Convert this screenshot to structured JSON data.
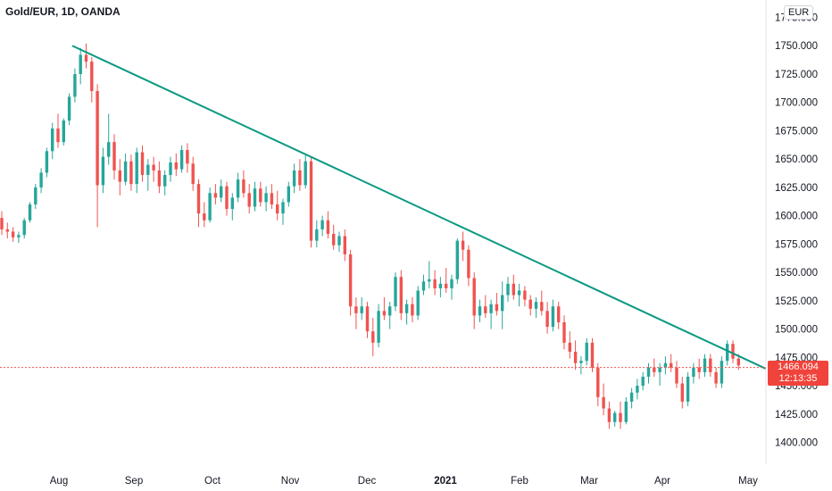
{
  "header": {
    "symbol": "Gold/EUR, 1D, OANDA",
    "currency": "EUR"
  },
  "last_price": {
    "value": "1466.094",
    "countdown": "12:13:35"
  },
  "colors": {
    "up": "#26a69a",
    "down": "#ef5350",
    "trend": "#089981",
    "last_line": "#ef5350"
  },
  "chart_data": {
    "type": "candlestick",
    "title": "Gold/EUR, 1D, OANDA",
    "xlabel": "",
    "ylabel": "",
    "ylim": [
      1380,
      1780
    ],
    "y_ticks": [
      "1400.000",
      "1425.000",
      "1450.000",
      "1475.000",
      "1500.000",
      "1525.000",
      "1550.000",
      "1575.000",
      "1600.000",
      "1625.000",
      "1650.000",
      "1675.000",
      "1700.000",
      "1725.000",
      "1750.000",
      "1775.000"
    ],
    "x_ticks": [
      "Aug",
      "Sep",
      "Oct",
      "Nov",
      "Dec",
      "2021",
      "Feb",
      "Mar",
      "Apr",
      "May"
    ],
    "grid": false,
    "trendline": {
      "from": {
        "date": "Aug 7",
        "price": 1750
      },
      "to": {
        "date": "Apr 30",
        "price": 1465
      }
    },
    "last_value": 1466.094,
    "ohlc_approx": [
      [
        1598,
        1604,
        1583,
        1588
      ],
      [
        1588,
        1594,
        1580,
        1586
      ],
      [
        1586,
        1590,
        1577,
        1581
      ],
      [
        1581,
        1586,
        1576,
        1583
      ],
      [
        1583,
        1598,
        1580,
        1596
      ],
      [
        1596,
        1612,
        1594,
        1610
      ],
      [
        1610,
        1628,
        1606,
        1625
      ],
      [
        1625,
        1642,
        1620,
        1638
      ],
      [
        1638,
        1660,
        1634,
        1657
      ],
      [
        1657,
        1682,
        1650,
        1677
      ],
      [
        1677,
        1690,
        1660,
        1665
      ],
      [
        1665,
        1686,
        1662,
        1684
      ],
      [
        1684,
        1708,
        1680,
        1705
      ],
      [
        1705,
        1730,
        1700,
        1725
      ],
      [
        1725,
        1748,
        1716,
        1742
      ],
      [
        1742,
        1752,
        1730,
        1736
      ],
      [
        1736,
        1740,
        1700,
        1710
      ],
      [
        1710,
        1716,
        1590,
        1627
      ],
      [
        1627,
        1660,
        1620,
        1652
      ],
      [
        1652,
        1690,
        1645,
        1665
      ],
      [
        1665,
        1672,
        1632,
        1640
      ],
      [
        1640,
        1650,
        1618,
        1630
      ],
      [
        1630,
        1655,
        1627,
        1648
      ],
      [
        1648,
        1654,
        1622,
        1628
      ],
      [
        1628,
        1660,
        1620,
        1656
      ],
      [
        1656,
        1662,
        1630,
        1636
      ],
      [
        1636,
        1650,
        1622,
        1645
      ],
      [
        1645,
        1652,
        1630,
        1640
      ],
      [
        1640,
        1648,
        1620,
        1626
      ],
      [
        1626,
        1640,
        1618,
        1636
      ],
      [
        1636,
        1652,
        1630,
        1647
      ],
      [
        1647,
        1655,
        1635,
        1641
      ],
      [
        1641,
        1662,
        1638,
        1658
      ],
      [
        1658,
        1664,
        1638,
        1646
      ],
      [
        1646,
        1652,
        1622,
        1628
      ],
      [
        1628,
        1632,
        1590,
        1602
      ],
      [
        1602,
        1612,
        1590,
        1596
      ],
      [
        1596,
        1625,
        1594,
        1620
      ],
      [
        1620,
        1628,
        1610,
        1616
      ],
      [
        1616,
        1632,
        1612,
        1626
      ],
      [
        1626,
        1630,
        1600,
        1606
      ],
      [
        1606,
        1620,
        1596,
        1616
      ],
      [
        1616,
        1638,
        1612,
        1632
      ],
      [
        1632,
        1640,
        1616,
        1620
      ],
      [
        1620,
        1628,
        1602,
        1608
      ],
      [
        1608,
        1630,
        1604,
        1624
      ],
      [
        1624,
        1630,
        1608,
        1612
      ],
      [
        1612,
        1626,
        1604,
        1620
      ],
      [
        1620,
        1628,
        1606,
        1610
      ],
      [
        1610,
        1622,
        1596,
        1602
      ],
      [
        1602,
        1615,
        1592,
        1612
      ],
      [
        1612,
        1630,
        1608,
        1626
      ],
      [
        1626,
        1646,
        1620,
        1640
      ],
      [
        1640,
        1650,
        1622,
        1627
      ],
      [
        1627,
        1654,
        1624,
        1648
      ],
      [
        1648,
        1652,
        1572,
        1578
      ],
      [
        1578,
        1596,
        1572,
        1588
      ],
      [
        1588,
        1600,
        1582,
        1596
      ],
      [
        1596,
        1604,
        1580,
        1584
      ],
      [
        1584,
        1592,
        1570,
        1574
      ],
      [
        1574,
        1586,
        1568,
        1582
      ],
      [
        1582,
        1588,
        1560,
        1566
      ],
      [
        1566,
        1570,
        1512,
        1520
      ],
      [
        1520,
        1528,
        1500,
        1514
      ],
      [
        1514,
        1528,
        1508,
        1520
      ],
      [
        1520,
        1524,
        1492,
        1498
      ],
      [
        1498,
        1510,
        1476,
        1488
      ],
      [
        1488,
        1522,
        1484,
        1516
      ],
      [
        1516,
        1528,
        1508,
        1512
      ],
      [
        1512,
        1524,
        1500,
        1520
      ],
      [
        1520,
        1550,
        1516,
        1546
      ],
      [
        1546,
        1552,
        1508,
        1514
      ],
      [
        1514,
        1526,
        1504,
        1522
      ],
      [
        1522,
        1528,
        1506,
        1512
      ],
      [
        1512,
        1538,
        1508,
        1534
      ],
      [
        1534,
        1548,
        1530,
        1542
      ],
      [
        1542,
        1560,
        1536,
        1544
      ],
      [
        1544,
        1552,
        1530,
        1536
      ],
      [
        1536,
        1546,
        1528,
        1540
      ],
      [
        1540,
        1554,
        1532,
        1536
      ],
      [
        1536,
        1548,
        1526,
        1544
      ],
      [
        1544,
        1580,
        1540,
        1578
      ],
      [
        1578,
        1586,
        1560,
        1570
      ],
      [
        1570,
        1574,
        1538,
        1545
      ],
      [
        1545,
        1550,
        1500,
        1512
      ],
      [
        1512,
        1526,
        1506,
        1520
      ],
      [
        1520,
        1530,
        1510,
        1514
      ],
      [
        1514,
        1526,
        1500,
        1522
      ],
      [
        1522,
        1532,
        1512,
        1516
      ],
      [
        1516,
        1542,
        1500,
        1530
      ],
      [
        1530,
        1546,
        1524,
        1540
      ],
      [
        1540,
        1548,
        1526,
        1530
      ],
      [
        1530,
        1540,
        1520,
        1534
      ],
      [
        1534,
        1538,
        1520,
        1526
      ],
      [
        1526,
        1530,
        1512,
        1518
      ],
      [
        1518,
        1528,
        1510,
        1524
      ],
      [
        1524,
        1534,
        1512,
        1516
      ],
      [
        1516,
        1524,
        1496,
        1502
      ],
      [
        1502,
        1526,
        1498,
        1520
      ],
      [
        1520,
        1524,
        1500,
        1506
      ],
      [
        1506,
        1512,
        1482,
        1488
      ],
      [
        1488,
        1498,
        1474,
        1480
      ],
      [
        1480,
        1490,
        1464,
        1470
      ],
      [
        1470,
        1476,
        1460,
        1472
      ],
      [
        1472,
        1492,
        1468,
        1488
      ],
      [
        1488,
        1492,
        1462,
        1466
      ],
      [
        1466,
        1470,
        1432,
        1440
      ],
      [
        1440,
        1452,
        1424,
        1430
      ],
      [
        1430,
        1436,
        1412,
        1418
      ],
      [
        1418,
        1428,
        1414,
        1426
      ],
      [
        1426,
        1436,
        1412,
        1418
      ],
      [
        1418,
        1440,
        1416,
        1436
      ],
      [
        1436,
        1448,
        1430,
        1444
      ],
      [
        1444,
        1456,
        1438,
        1450
      ],
      [
        1450,
        1462,
        1446,
        1458
      ],
      [
        1458,
        1470,
        1452,
        1466
      ],
      [
        1466,
        1474,
        1458,
        1462
      ],
      [
        1462,
        1470,
        1450,
        1466
      ],
      [
        1466,
        1476,
        1460,
        1470
      ],
      [
        1470,
        1478,
        1462,
        1466
      ],
      [
        1466,
        1472,
        1448,
        1452
      ],
      [
        1452,
        1458,
        1430,
        1436
      ],
      [
        1436,
        1462,
        1432,
        1458
      ],
      [
        1458,
        1470,
        1452,
        1466
      ],
      [
        1466,
        1474,
        1456,
        1462
      ],
      [
        1462,
        1478,
        1458,
        1474
      ],
      [
        1474,
        1478,
        1458,
        1462
      ],
      [
        1462,
        1466,
        1448,
        1452
      ],
      [
        1452,
        1476,
        1448,
        1472
      ],
      [
        1472,
        1490,
        1468,
        1487
      ],
      [
        1487,
        1490,
        1470,
        1474
      ],
      [
        1474,
        1478,
        1464,
        1468
      ]
    ]
  }
}
